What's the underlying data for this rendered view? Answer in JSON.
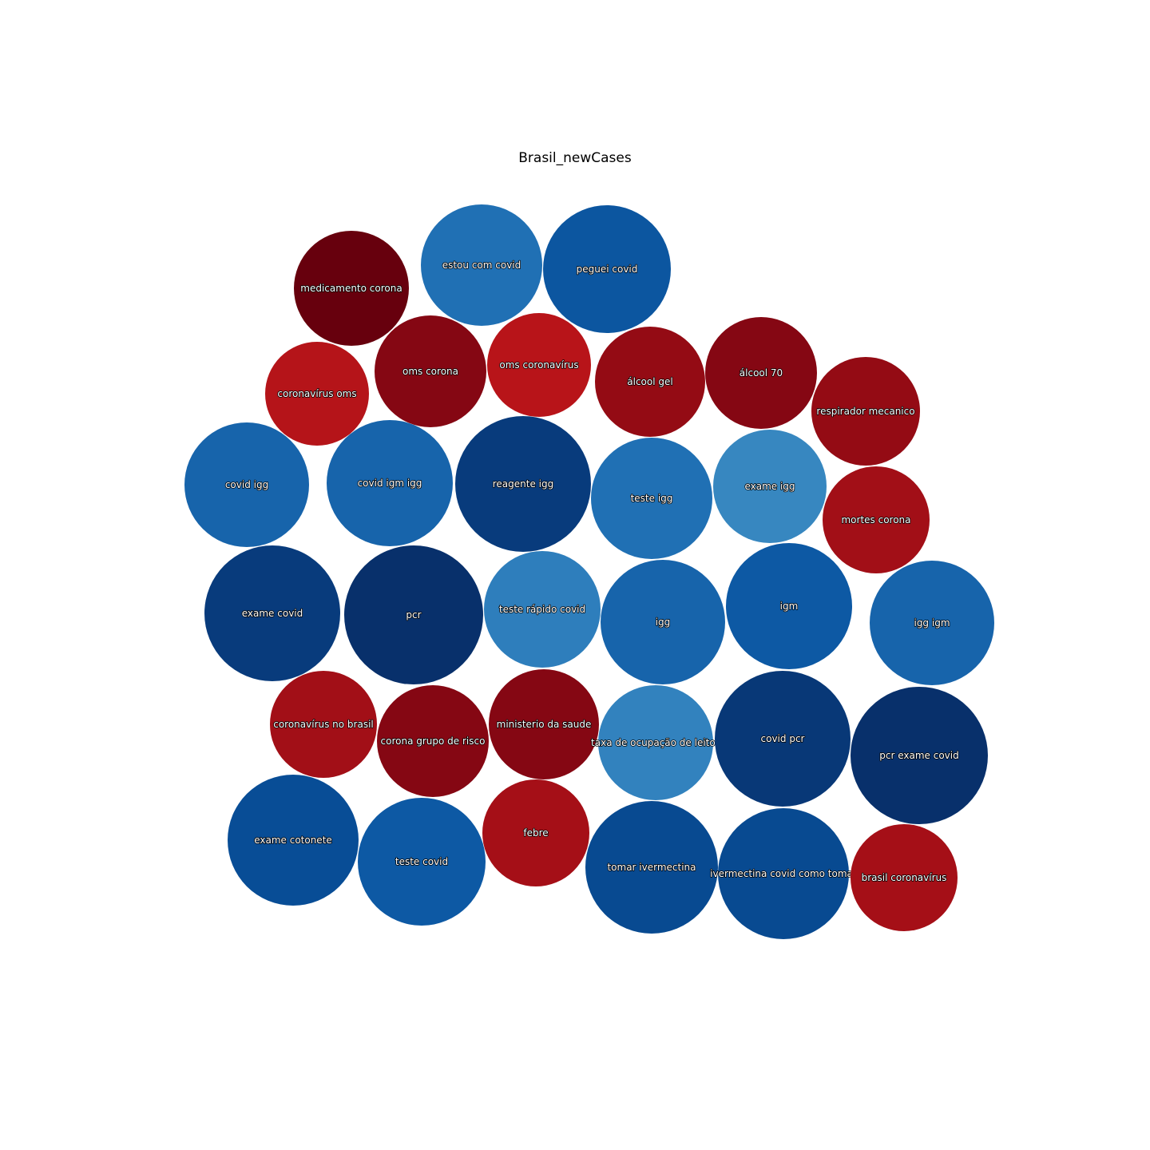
{
  "chart_data": {
    "type": "bubble",
    "title": "Brasil_newCases",
    "axes_visible": false,
    "color_scale": "diverging red-blue (RdBu)",
    "bubbles": [
      {
        "label": "medicamento corona",
        "color": "#67000d"
      },
      {
        "label": "estou com covid",
        "color": "#2070b4"
      },
      {
        "label": "peguei covid",
        "color": "#0c56a0"
      },
      {
        "label": "coronavírus oms",
        "color": "#b51419"
      },
      {
        "label": "oms corona",
        "color": "#850713"
      },
      {
        "label": "oms coronavírus",
        "color": "#b81419"
      },
      {
        "label": "álcool gel",
        "color": "#940b14"
      },
      {
        "label": "álcool 70",
        "color": "#850713"
      },
      {
        "label": "respirador mecanico",
        "color": "#940b14"
      },
      {
        "label": "covid igg",
        "color": "#1764ab"
      },
      {
        "label": "covid igm igg",
        "color": "#1764ab"
      },
      {
        "label": "reagente igg",
        "color": "#083b7c"
      },
      {
        "label": "teste igg",
        "color": "#2070b4"
      },
      {
        "label": "exame igg",
        "color": "#3787c0"
      },
      {
        "label": "mortes corona",
        "color": "#a20f17"
      },
      {
        "label": "exame covid",
        "color": "#083b7c"
      },
      {
        "label": "pcr",
        "color": "#08306b"
      },
      {
        "label": "teste rápido covid",
        "color": "#2e7ebc"
      },
      {
        "label": "igg",
        "color": "#1764ab"
      },
      {
        "label": "igm",
        "color": "#0d59a4"
      },
      {
        "label": "igg igm",
        "color": "#1764ab"
      },
      {
        "label": "coronavírus no brasil",
        "color": "#a20f17"
      },
      {
        "label": "corona grupo de risco",
        "color": "#850713"
      },
      {
        "label": "ministerio da saude",
        "color": "#850713"
      },
      {
        "label": "taxa de ocupação de leitos",
        "color": "#3282be"
      },
      {
        "label": "covid pcr",
        "color": "#083877"
      },
      {
        "label": "pcr exame covid",
        "color": "#08306b"
      },
      {
        "label": "exame cotonete",
        "color": "#084d96"
      },
      {
        "label": "teste covid",
        "color": "#0d59a4"
      },
      {
        "label": "febre",
        "color": "#a50f17"
      },
      {
        "label": "tomar ivermectina",
        "color": "#084a91"
      },
      {
        "label": "ivermectina covid como tomar",
        "color": "#084a91"
      },
      {
        "label": "brasil coronavírus",
        "color": "#a50f17"
      }
    ]
  }
}
